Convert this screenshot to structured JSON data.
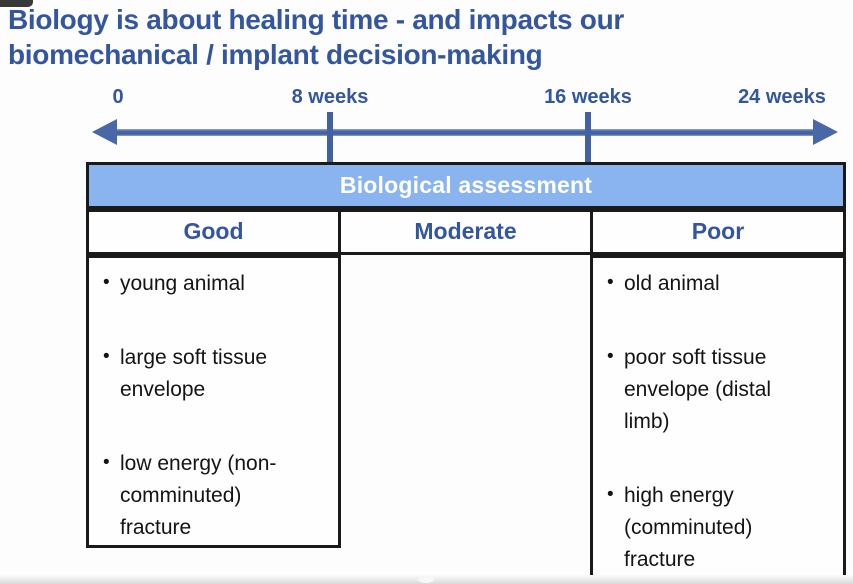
{
  "title": "Biology is about healing time - and impacts our biomechanical / implant decision-making",
  "timeline": {
    "labels": [
      "0",
      "8 weeks",
      "16 weeks",
      "24 weeks"
    ]
  },
  "assessment_table": {
    "band_title": "Biological assessment",
    "columns": [
      {
        "label": "Good",
        "items": [
          "young animal",
          "large soft tissue envelope",
          "low energy (non-comminuted) fracture"
        ]
      },
      {
        "label": "Moderate",
        "items": []
      },
      {
        "label": "Poor",
        "items": [
          "old animal",
          "poor soft tissue envelope (distal limb)",
          "high energy (comminuted) fracture"
        ]
      }
    ]
  },
  "colors": {
    "heading_blue": "#33569e",
    "arrow_blue": "#4a67a8",
    "band_blue": "#8ab4f0",
    "band_text": "#ffffff",
    "body_text": "#141414",
    "border_black": "#1a1a1a"
  }
}
